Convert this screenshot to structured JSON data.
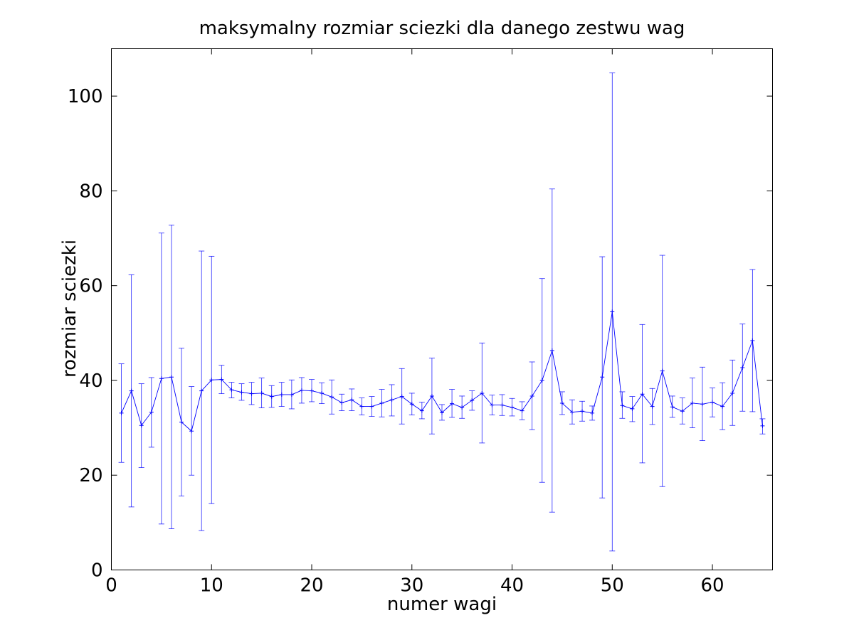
{
  "chart_data": {
    "type": "line",
    "title": "maksymalny rozmiar sciezki dla danego zestwu wag",
    "xlabel": "numer wagi",
    "ylabel": "rozmiar sciezki",
    "xlim": [
      0,
      66
    ],
    "ylim": [
      0,
      110
    ],
    "xticks": [
      0,
      10,
      20,
      30,
      40,
      50,
      60
    ],
    "yticks": [
      0,
      20,
      40,
      60,
      80,
      100
    ],
    "grid": false,
    "legend": "none",
    "error_bars": true,
    "series": [
      {
        "color": "#0000ff",
        "x": [
          1,
          2,
          3,
          4,
          5,
          6,
          7,
          8,
          9,
          10,
          11,
          12,
          13,
          14,
          15,
          16,
          17,
          18,
          19,
          20,
          21,
          22,
          23,
          24,
          25,
          26,
          27,
          28,
          29,
          30,
          31,
          32,
          33,
          34,
          35,
          36,
          37,
          38,
          39,
          40,
          41,
          42,
          43,
          44,
          45,
          46,
          47,
          48,
          49,
          50,
          51,
          52,
          53,
          54,
          55,
          56,
          57,
          58,
          59,
          60,
          61,
          62,
          63,
          64,
          65
        ],
        "y": [
          33.1,
          37.8,
          30.5,
          33.3,
          40.4,
          40.7,
          31.2,
          29.3,
          37.8,
          40.1,
          40.2,
          38.0,
          37.5,
          37.2,
          37.3,
          36.6,
          37.0,
          37.0,
          37.9,
          37.8,
          37.3,
          36.5,
          35.3,
          35.9,
          34.5,
          34.5,
          35.2,
          35.9,
          36.6,
          35.0,
          33.6,
          36.7,
          33.2,
          35.1,
          34.3,
          35.8,
          37.3,
          34.8,
          34.8,
          34.3,
          33.6,
          36.7,
          40.0,
          46.3,
          35.2,
          33.3,
          33.5,
          33.1,
          40.7,
          54.5,
          34.7,
          34.0,
          37.1,
          34.5,
          42.0,
          34.4,
          33.5,
          35.2,
          35.0,
          35.4,
          34.5,
          37.3,
          42.7,
          48.4,
          30.4
        ],
        "lower": [
          22.7,
          13.3,
          21.6,
          25.9,
          9.7,
          8.7,
          15.6,
          20.0,
          8.3,
          14.0,
          37.2,
          36.3,
          35.8,
          34.9,
          34.2,
          34.3,
          34.5,
          34.0,
          35.2,
          35.5,
          35.1,
          32.9,
          33.6,
          33.6,
          32.7,
          32.4,
          32.3,
          32.5,
          30.8,
          32.7,
          31.9,
          28.7,
          31.6,
          32.2,
          32.0,
          33.7,
          26.8,
          32.7,
          32.6,
          32.5,
          31.7,
          29.6,
          18.5,
          12.2,
          32.8,
          30.8,
          31.4,
          31.6,
          15.2,
          4.0,
          32.0,
          31.3,
          22.6,
          30.7,
          17.6,
          32.2,
          30.8,
          30.0,
          27.3,
          32.3,
          29.6,
          30.5,
          33.5,
          33.4,
          28.7
        ],
        "upper": [
          43.5,
          62.3,
          39.3,
          40.6,
          71.1,
          72.8,
          46.8,
          38.7,
          67.3,
          66.2,
          43.2,
          39.6,
          39.3,
          39.6,
          40.5,
          38.9,
          39.6,
          40.1,
          40.6,
          40.2,
          39.5,
          40.1,
          37.1,
          38.2,
          36.3,
          36.6,
          38.1,
          39.1,
          42.5,
          37.3,
          35.4,
          44.7,
          34.9,
          38.1,
          36.7,
          37.8,
          47.9,
          36.9,
          37.0,
          36.2,
          35.5,
          43.9,
          61.5,
          80.4,
          37.6,
          35.9,
          35.6,
          34.6,
          66.1,
          104.9,
          37.6,
          36.6,
          51.8,
          38.3,
          66.4,
          36.7,
          36.3,
          40.5,
          42.8,
          38.4,
          39.5,
          44.3,
          51.9,
          63.4,
          31.9
        ]
      }
    ]
  }
}
